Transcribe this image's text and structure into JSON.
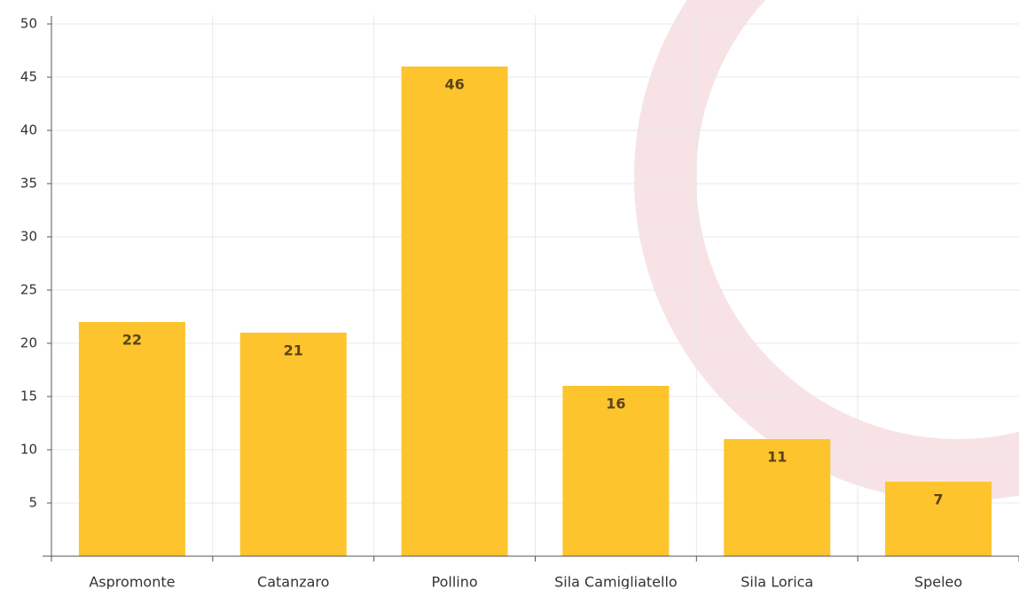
{
  "chart_data": {
    "type": "bar",
    "categories": [
      "Aspromonte",
      "Catanzaro",
      "Pollino",
      "Sila Camigliatello",
      "Sila Lorica",
      "Speleo"
    ],
    "values": [
      22,
      21,
      46,
      16,
      11,
      7
    ],
    "color": "#fec42d",
    "ylim": [
      0,
      50
    ],
    "yticks": [
      5,
      10,
      15,
      20,
      25,
      30,
      35,
      40,
      45,
      50
    ],
    "grid": true
  }
}
